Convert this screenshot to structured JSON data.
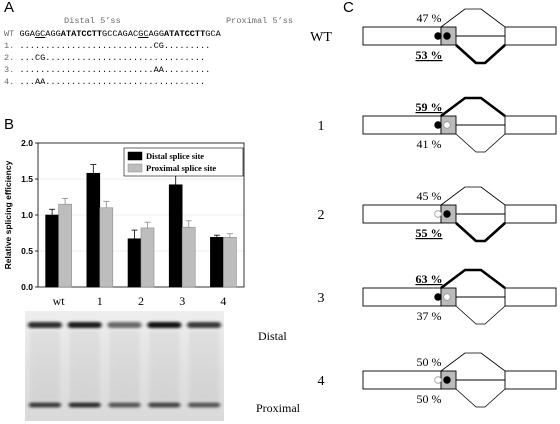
{
  "panels": {
    "a": "A",
    "b": "B",
    "c": "C"
  },
  "panel_a": {
    "label_distal": "Distal 5’ss",
    "label_proximal": "Proximal 5’ss",
    "rows": [
      {
        "id": "WT",
        "segments": [
          {
            "t": "GGA",
            "s": ""
          },
          {
            "t": "GC",
            "s": "u"
          },
          {
            "t": "AGG",
            "s": ""
          },
          {
            "t": "ATATCCTT",
            "s": "b"
          },
          {
            "t": "GCCAGA",
            "s": ""
          },
          {
            "t": "C",
            "s": ""
          },
          {
            "t": "GC",
            "s": "u"
          },
          {
            "t": "AGG",
            "s": ""
          },
          {
            "t": "ATATCCTT",
            "s": "b"
          },
          {
            "t": "GCA",
            "s": ""
          }
        ]
      },
      {
        "id": "1.",
        "segments": [
          {
            "t": "..........................CG.........",
            "s": ""
          }
        ]
      },
      {
        "id": "2.",
        "segments": [
          {
            "t": "...CG...............................",
            "s": ""
          }
        ]
      },
      {
        "id": "3.",
        "segments": [
          {
            "t": "..........................AA.........",
            "s": ""
          }
        ]
      },
      {
        "id": "4.",
        "segments": [
          {
            "t": "...AA...............................",
            "s": ""
          }
        ]
      }
    ]
  },
  "chart_data": {
    "type": "bar",
    "categories": [
      "wt",
      "1",
      "2",
      "3",
      "4"
    ],
    "series": [
      {
        "name": "Distal splice site",
        "values": [
          1.0,
          1.58,
          0.67,
          1.42,
          0.69
        ],
        "errors": [
          0.08,
          0.12,
          0.12,
          0.17,
          0.03
        ],
        "color": "#000000"
      },
      {
        "name": "Proximal splice site",
        "values": [
          1.15,
          1.1,
          0.82,
          0.83,
          0.69
        ],
        "errors": [
          0.08,
          0.09,
          0.08,
          0.09,
          0.05
        ],
        "color": "#bdbdbd"
      }
    ],
    "ylabel": "Relative splicing efficiency",
    "xlabel": "",
    "ylim": [
      0,
      2.0
    ],
    "yticks": [
      "0.0",
      "0.5",
      "1.0",
      "1.5",
      "2.0"
    ],
    "legend": "top-right"
  },
  "gel": {
    "label_distal": "Distal",
    "label_proximal": "Proximal",
    "distal_intensity": [
      0.8,
      0.88,
      0.55,
      0.92,
      0.75
    ],
    "proximal_intensity": [
      0.72,
      0.78,
      0.6,
      0.68,
      0.6
    ]
  },
  "panel_c": {
    "rows": [
      {
        "label": "WT",
        "top": "47 %",
        "bottom": "53 %",
        "strong": "bottom",
        "distal_filled": true,
        "proximal_filled": true
      },
      {
        "label": "1",
        "top": "59 %",
        "bottom": "41 %",
        "strong": "top",
        "distal_filled": true,
        "proximal_filled": false
      },
      {
        "label": "2",
        "top": "45 %",
        "bottom": "55 %",
        "strong": "bottom",
        "distal_filled": false,
        "proximal_filled": true
      },
      {
        "label": "3",
        "top": "63 %",
        "bottom": "37 %",
        "strong": "top",
        "distal_filled": true,
        "proximal_filled": false
      },
      {
        "label": "4",
        "top": "50 %",
        "bottom": "50 %",
        "strong": "none",
        "distal_filled": false,
        "proximal_filled": true
      }
    ]
  }
}
